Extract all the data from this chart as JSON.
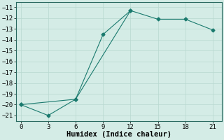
{
  "xlabel": "Humidex (Indice chaleur)",
  "line1_x": [
    0,
    3,
    6,
    9,
    12
  ],
  "line1_y": [
    -20,
    -21,
    -19.5,
    -13.5,
    -11.3
  ],
  "line2_x": [
    0,
    6,
    12,
    15,
    18,
    21
  ],
  "line2_y": [
    -20,
    -19.5,
    -11.3,
    -12.1,
    -12.1,
    -13.1
  ],
  "xlim": [
    -0.5,
    22
  ],
  "ylim": [
    -21.5,
    -10.5
  ],
  "xticks": [
    0,
    3,
    6,
    9,
    12,
    15,
    18,
    21
  ],
  "yticks": [
    -11,
    -12,
    -13,
    -14,
    -15,
    -16,
    -17,
    -18,
    -19,
    -20,
    -21
  ],
  "line_color": "#1a7a6e",
  "bg_color": "#d4ece6",
  "grid_color": "#b8d8d0",
  "marker": "D",
  "marker_size": 2.5,
  "linewidth": 0.8,
  "tick_labelsize": 6.5,
  "xlabel_fontsize": 7.5
}
